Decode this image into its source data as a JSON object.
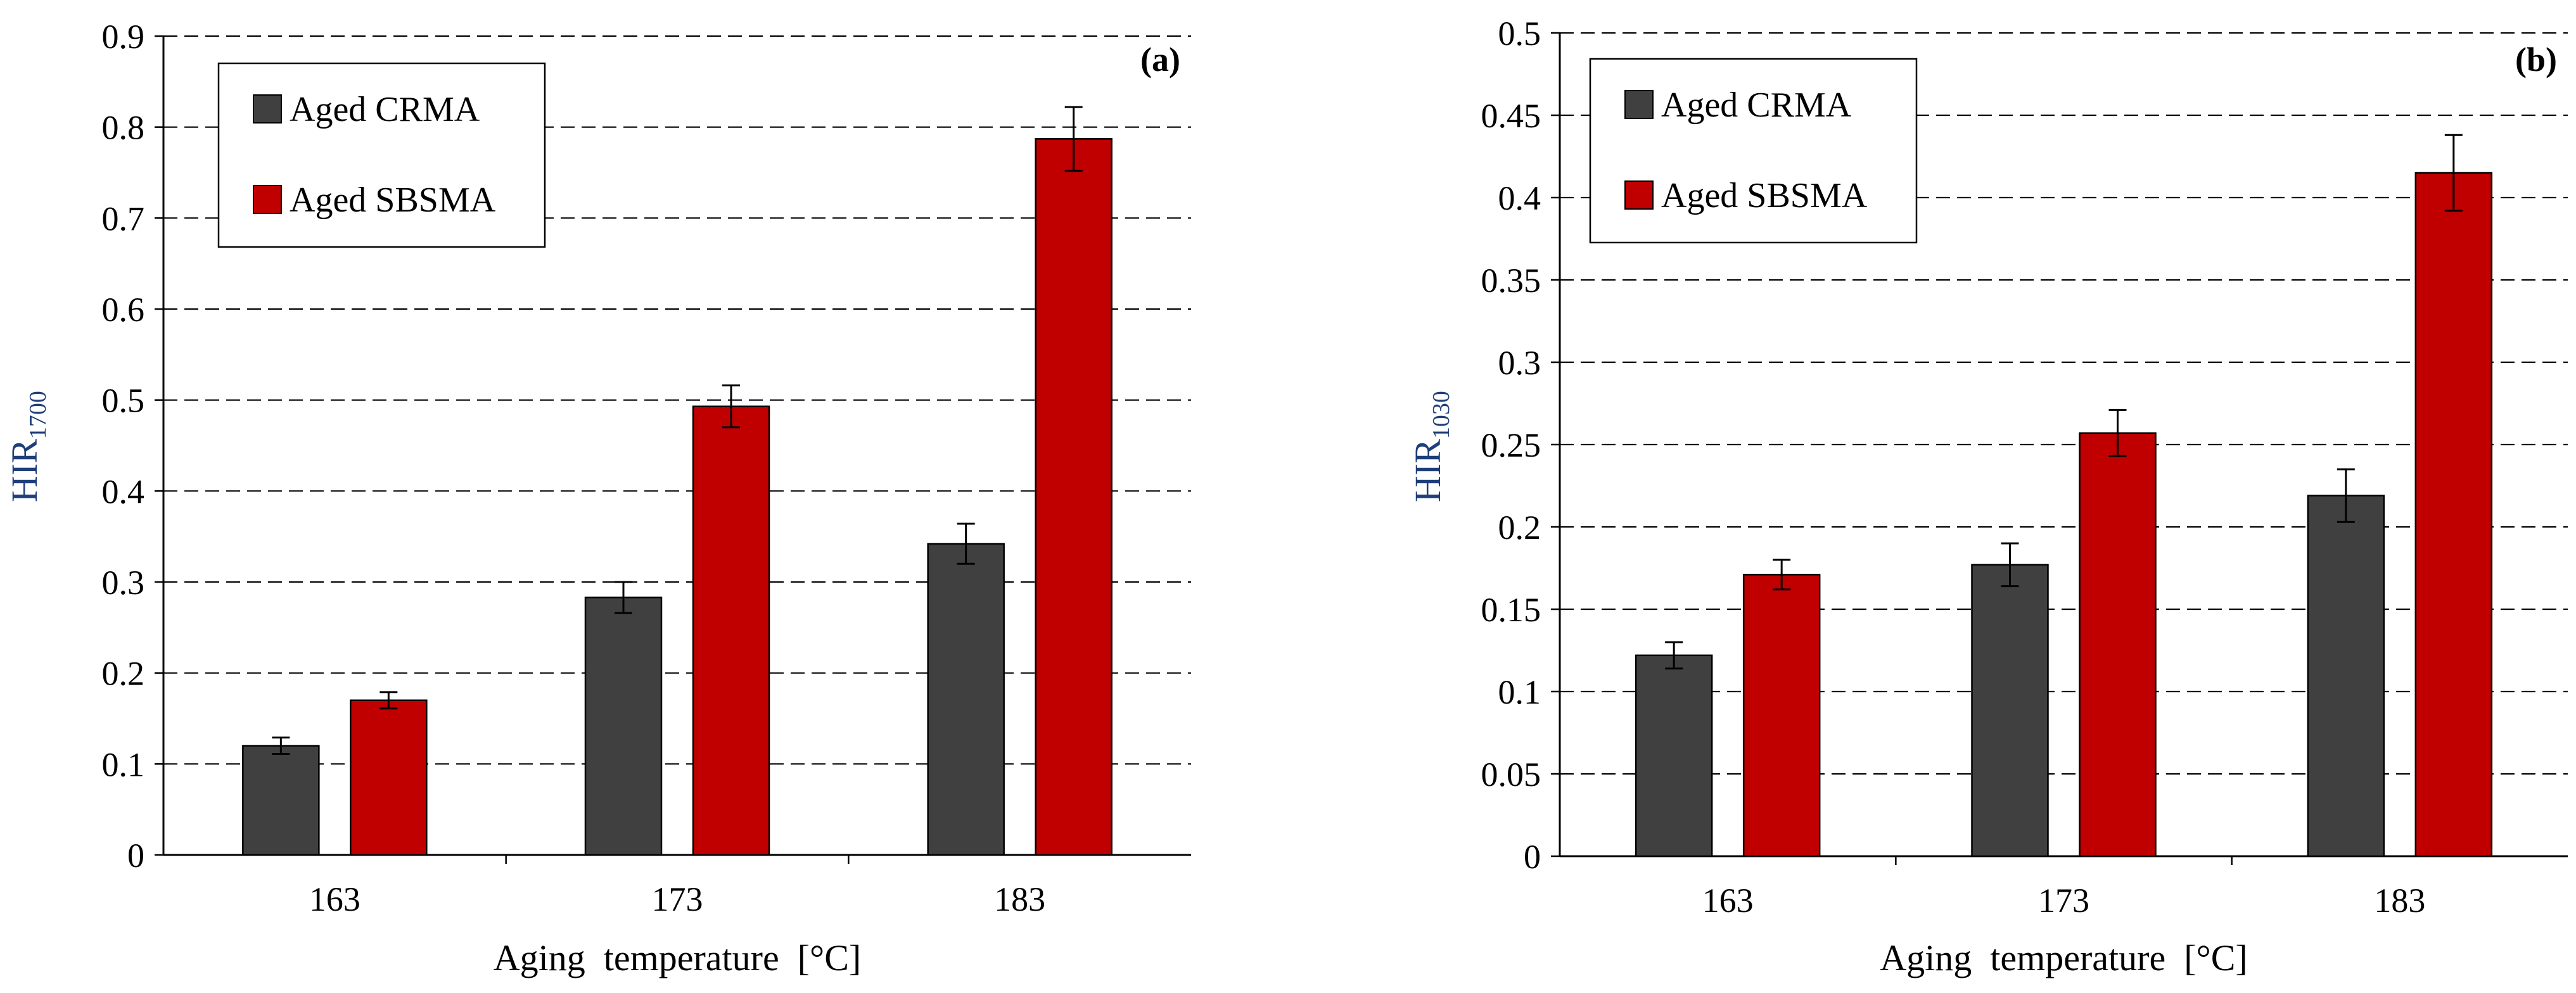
{
  "chart_data": [
    {
      "type": "bar",
      "panel_label": "(a)",
      "categories": [
        "163",
        "173",
        "183"
      ],
      "series": [
        {
          "name": "Aged CRMA",
          "color": "#404040",
          "values": [
            0.12,
            0.283,
            0.342
          ],
          "errors": [
            0.009,
            0.017,
            0.022
          ]
        },
        {
          "name": "Aged SBSMA",
          "color": "#c00000",
          "values": [
            0.17,
            0.493,
            0.787
          ],
          "errors": [
            0.009,
            0.023,
            0.035
          ]
        }
      ],
      "xlabel": "Aging  temperature  [°C]",
      "ylabel": {
        "main": "HIR",
        "sub": "1700"
      },
      "ylim": [
        0,
        0.9
      ],
      "yticks": [
        "0",
        "0.1",
        "0.2",
        "0.3",
        "0.4",
        "0.5",
        "0.6",
        "0.7",
        "0.8",
        "0.9"
      ],
      "grid": "horizontal dashed",
      "legend": "top-left"
    },
    {
      "type": "bar",
      "panel_label": "(b)",
      "categories": [
        "163",
        "173",
        "183"
      ],
      "series": [
        {
          "name": "Aged CRMA",
          "color": "#404040",
          "values": [
            0.122,
            0.177,
            0.219
          ],
          "errors": [
            0.008,
            0.013,
            0.016
          ]
        },
        {
          "name": "Aged SBSMA",
          "color": "#c00000",
          "values": [
            0.171,
            0.257,
            0.415
          ],
          "errors": [
            0.009,
            0.014,
            0.023
          ]
        }
      ],
      "xlabel": "Aging  temperature  [°C]",
      "ylabel": {
        "main": "HIR",
        "sub": "1030"
      },
      "ylim": [
        0,
        0.5
      ],
      "yticks": [
        "0",
        "0.05",
        "0.1",
        "0.15",
        "0.2",
        "0.25",
        "0.3",
        "0.35",
        "0.4",
        "0.45",
        "0.5"
      ],
      "grid": "horizontal dashed",
      "legend": "top-left"
    }
  ],
  "colors": {
    "axis_title_color": "#1f3f7a",
    "grid": "#000000",
    "bar_stroke": "#000000"
  }
}
